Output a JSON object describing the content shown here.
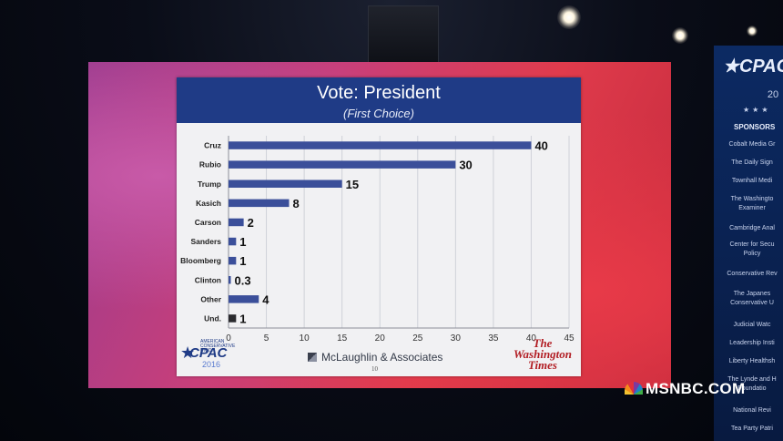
{
  "slide": {
    "title": "Vote: President",
    "subtitle": "(First Choice)",
    "credit": "McLaughlin & Associates",
    "page_number": "10"
  },
  "logos": {
    "cpac_small": "AMERICAN CONSERVATIVE UNION",
    "cpac_main": "CPAC",
    "cpac_year": "2016",
    "washington_times_line1": "The",
    "washington_times_line2": "Washington",
    "washington_times_line3": "Times"
  },
  "broadcast": {
    "network": "MSNBC.COM"
  },
  "side_banner": {
    "brand": "CPAC",
    "year": "20",
    "heading": "SPONSORS",
    "items": [
      "Cobalt Media Gr",
      "The Daily Sign",
      "Townhall Medi",
      "The Washingto",
      "Examiner",
      "Cambridge Anal",
      "Center for Secu",
      "Policy",
      "Conservative Rev",
      "The Japanes",
      "Conservative U",
      "Judicial Watc",
      "Leadership Insti",
      "Liberty Healthsh",
      "The Lynde and H",
      "Foundatio",
      "National Revi",
      "Tea Party Patri"
    ]
  },
  "colors": {
    "bar": "#3b4f9a",
    "bar_und": "#2a2a2e",
    "header": "#1f3b86"
  },
  "chart_data": {
    "type": "bar",
    "orientation": "horizontal",
    "categories": [
      "Cruz",
      "Rubio",
      "Trump",
      "Kasich",
      "Carson",
      "Sanders",
      "Bloomberg",
      "Clinton",
      "Other",
      "Und."
    ],
    "values": [
      40,
      30,
      15,
      8,
      2,
      1,
      1,
      0.3,
      4,
      1
    ],
    "value_labels": [
      "40",
      "30",
      "15",
      "8",
      "2",
      "1",
      "1",
      "0.3",
      "4",
      "1"
    ],
    "title": "Vote: President",
    "subtitle": "(First Choice)",
    "xlim": [
      0,
      45
    ],
    "xticks": [
      0,
      5,
      10,
      15,
      20,
      25,
      30,
      35,
      40,
      45
    ],
    "grid": "vertical"
  }
}
